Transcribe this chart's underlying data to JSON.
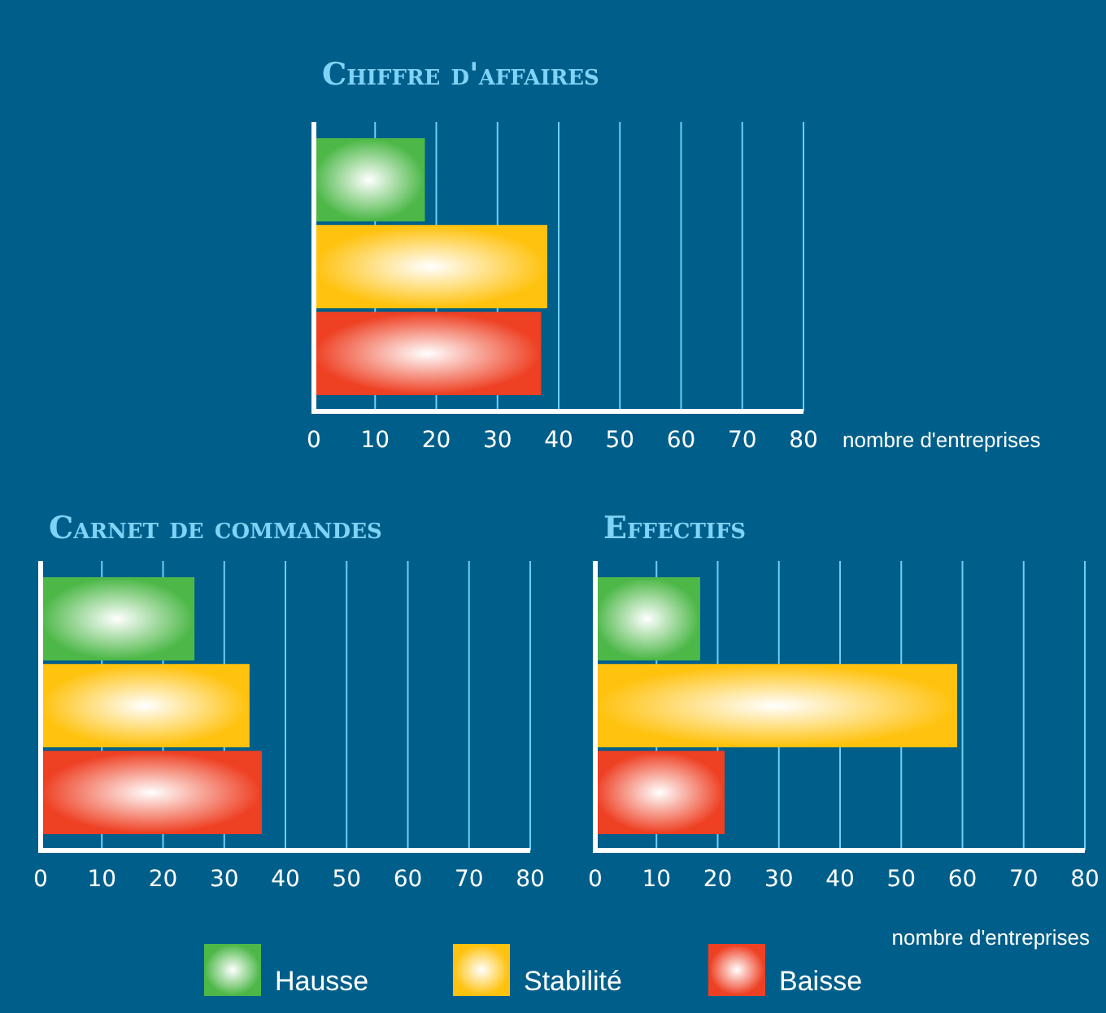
{
  "chart_data": [
    {
      "type": "bar",
      "title": "Chiffre d'affaires",
      "orientation": "horizontal",
      "categories": [
        null
      ],
      "xlabel": "nombre d'entreprises",
      "xlim": [
        0,
        80
      ],
      "xticks": [
        0,
        10,
        20,
        30,
        40,
        50,
        60,
        70,
        80
      ],
      "grid": "x",
      "legend": "bottom",
      "series": [
        {
          "name": "Hausse",
          "color": "#4db848",
          "values": [
            18
          ]
        },
        {
          "name": "Stabilité",
          "color": "#ffc20e",
          "values": [
            38
          ]
        },
        {
          "name": "Baisse",
          "color": "#ee4023",
          "values": [
            37
          ]
        }
      ]
    },
    {
      "type": "bar",
      "title": "Carnet de commandes",
      "orientation": "horizontal",
      "categories": [
        null
      ],
      "xlim": [
        0,
        80
      ],
      "xticks": [
        0,
        10,
        20,
        30,
        40,
        50,
        60,
        70,
        80
      ],
      "grid": "x",
      "series": [
        {
          "color": "#4db848",
          "values": [
            25
          ]
        },
        {
          "color": "#ffc20e",
          "values": [
            34
          ]
        },
        {
          "color": "#ee4023",
          "values": [
            36
          ]
        }
      ]
    },
    {
      "type": "bar",
      "title": "Effectifs",
      "orientation": "horizontal",
      "categories": [
        null
      ],
      "xlabel": "nombre d'entreprises",
      "xlim": [
        0,
        80
      ],
      "xticks": [
        0,
        10,
        20,
        30,
        40,
        50,
        60,
        70,
        80
      ],
      "grid": "x",
      "series": [
        {
          "color": "#4db848",
          "values": [
            17
          ]
        },
        {
          "color": "#ffc20e",
          "values": [
            59
          ]
        },
        {
          "color": "#ee4023",
          "values": [
            21
          ]
        }
      ]
    }
  ]
}
